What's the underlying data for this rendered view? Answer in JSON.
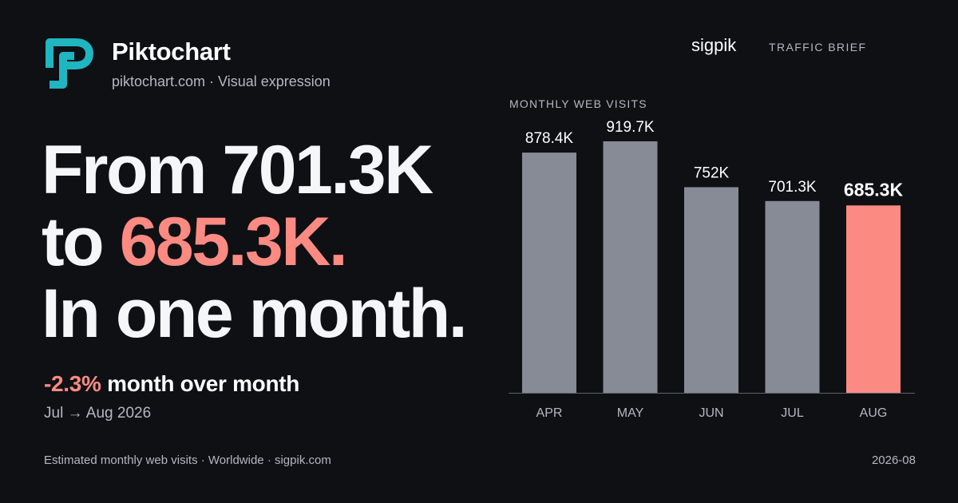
{
  "brand": {
    "name": "Piktochart",
    "subtitle": "piktochart.com · Visual expression",
    "logo_color": "#1fb5c1"
  },
  "headline": {
    "line1": "From 701.3K",
    "line2_prefix": "to ",
    "line2_accent": "685.3K.",
    "line3": "In one month."
  },
  "change": {
    "percent": "-2.3%",
    "label": " month over month",
    "period": "Jul → Aug 2026"
  },
  "publisher": {
    "name": "sigpik",
    "section": "TRAFFIC BRIEF"
  },
  "footer": {
    "note": "Estimated monthly web visits · Worldwide · sigpik.com",
    "date": "2026-08"
  },
  "colors": {
    "background": "#0e1014",
    "bar_default": "#878b96",
    "bar_highlight": "#fb8a83",
    "accent": "#fb8a83"
  },
  "chart_data": {
    "type": "bar",
    "title": "MONTHLY WEB VISITS",
    "categories": [
      "APR",
      "MAY",
      "JUN",
      "JUL",
      "AUG"
    ],
    "values": [
      878.4,
      919.7,
      752,
      701.3,
      685.3
    ],
    "value_labels": [
      "878.4K",
      "919.7K",
      "752K",
      "701.3K",
      "685.3K"
    ],
    "unit": "K",
    "highlight_index": 4,
    "ylim": [
      0,
      919.7
    ],
    "grid": false,
    "xlabel": "",
    "ylabel": ""
  }
}
